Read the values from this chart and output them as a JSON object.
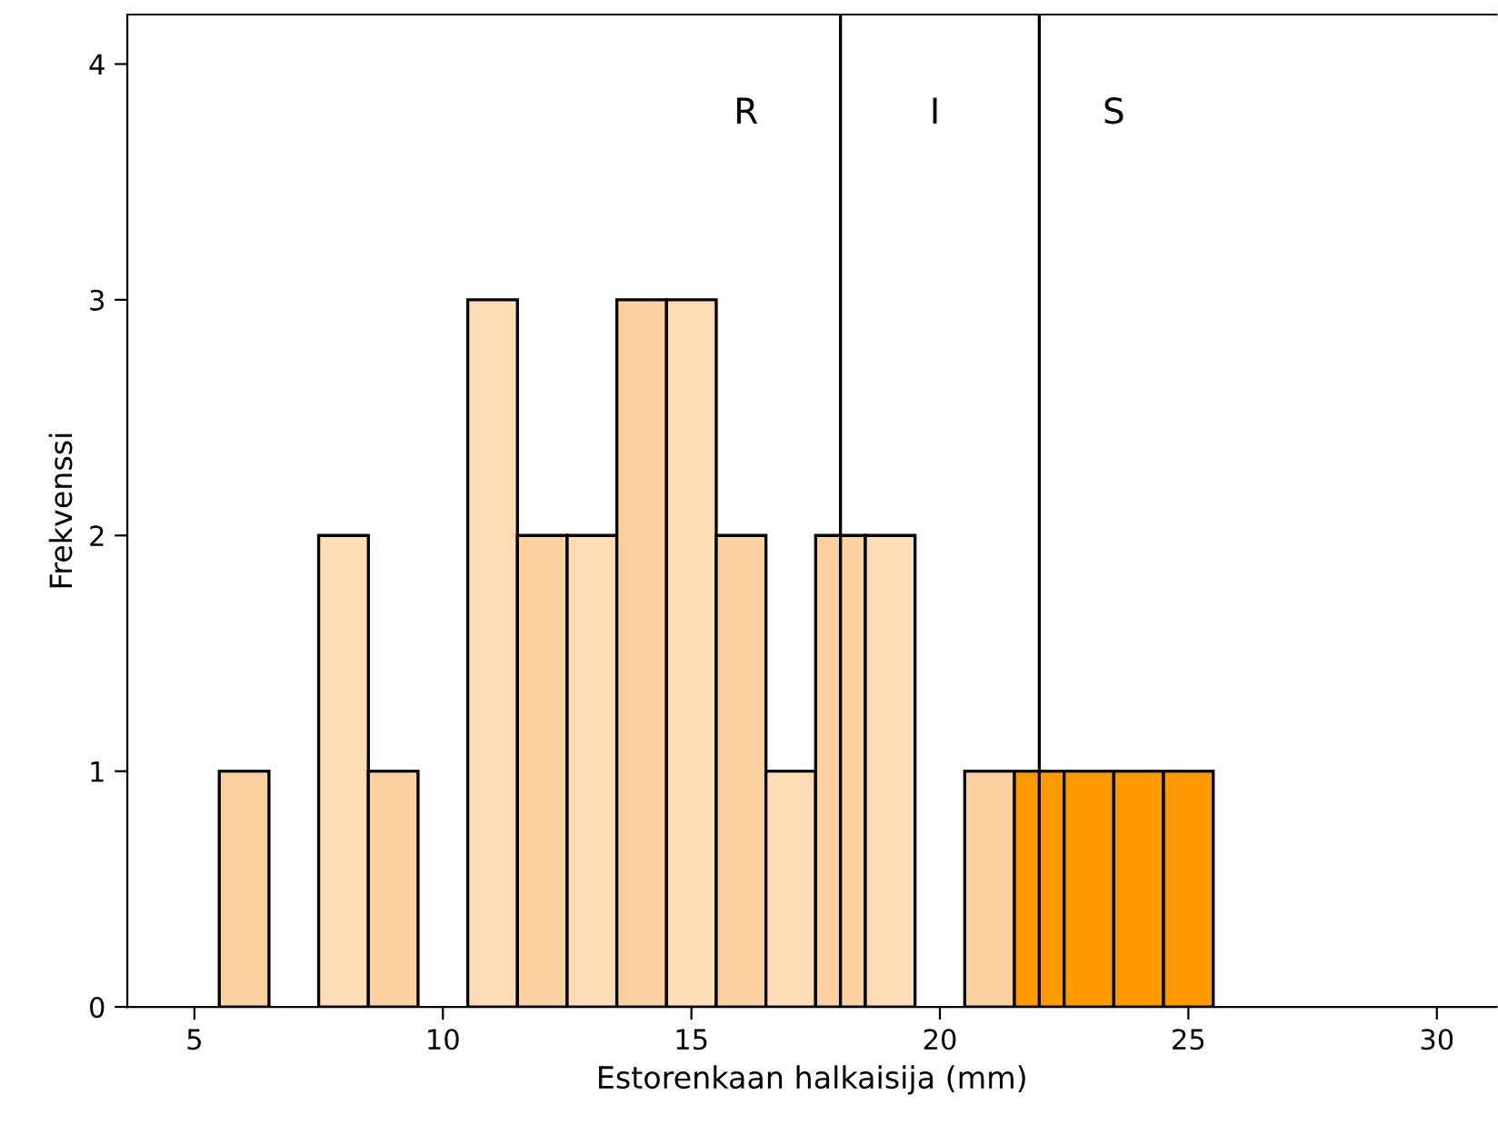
{
  "chart_data": {
    "type": "histogram",
    "xlabel": "Estorenkaan halkaisija (mm)",
    "ylabel": "Frekvenssi",
    "bins": [
      5.5,
      6.5,
      7.5,
      8.5,
      9.5,
      10.5,
      11.5,
      12.5,
      13.5,
      14.5,
      15.5,
      16.5,
      17.5,
      18.5,
      19.5,
      20.5,
      21.5,
      22.5,
      23.5,
      24.5,
      25.5
    ],
    "values": [
      1,
      0,
      2,
      1,
      0,
      3,
      2,
      2,
      3,
      3,
      2,
      1,
      2,
      2,
      0,
      1,
      1,
      1,
      1,
      1
    ],
    "colors": [
      "#fdd0a2",
      null,
      "#fedcb6",
      "#fdd0a2",
      null,
      "#fedcb6",
      "#fdd0a2",
      "#fedcb6",
      "#fdd0a2",
      "#fedcb6",
      "#fdd0a2",
      "#fedcb6",
      "#fdd0a2",
      "#fedcb6",
      null,
      "#fdd0a2",
      "#fe9a00",
      "#fe9a00",
      "#fe9a00",
      "#fe9a00"
    ],
    "xlim": [
      3.65,
      31.2
    ],
    "ylim": [
      0,
      4.21
    ],
    "xticks": [
      5,
      10,
      15,
      20,
      25,
      30
    ],
    "yticks": [
      0,
      1,
      2,
      3,
      4
    ],
    "ref_lines": [
      {
        "axis": "x",
        "value": 18,
        "color": "#000000"
      },
      {
        "axis": "x",
        "value": 22,
        "color": "#000000"
      }
    ],
    "annotations": [
      "R",
      "I",
      "S"
    ],
    "grid": false,
    "legend": false
  }
}
